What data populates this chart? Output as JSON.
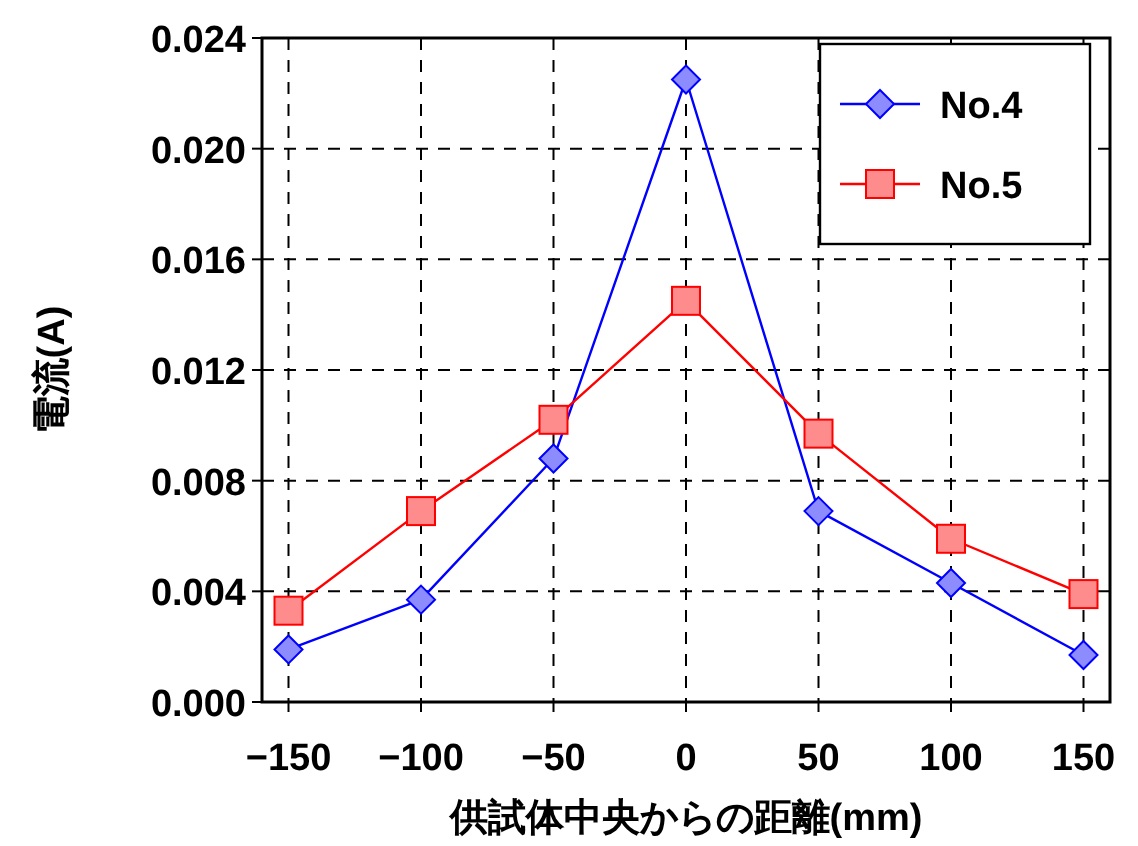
{
  "chart_data": {
    "type": "line",
    "xlabel": "供試体中央からの距離(mm)",
    "ylabel": "電流(A)",
    "x": [
      -150,
      -100,
      -50,
      0,
      50,
      100,
      150
    ],
    "series": [
      {
        "name": "No.4",
        "color": "#0000ff",
        "marker": "diamond",
        "values": [
          0.0019,
          0.0037,
          0.0088,
          0.0225,
          0.0069,
          0.0043,
          0.0017
        ]
      },
      {
        "name": "No.5",
        "color": "#ff0000",
        "marker": "square",
        "values": [
          0.0033,
          0.0069,
          0.0102,
          0.0145,
          0.0097,
          0.0059,
          0.0039
        ]
      }
    ],
    "xlim": [
      -160,
      160
    ],
    "xticks": [
      -150,
      -100,
      -50,
      0,
      50,
      100,
      150
    ],
    "ylim": [
      0,
      0.024
    ],
    "yticks": [
      {
        "value": 0,
        "label": "0.000"
      },
      {
        "value": 0.004,
        "label": "0.004"
      },
      {
        "value": 0.008,
        "label": "0.008"
      },
      {
        "value": 0.012,
        "label": "0.012"
      },
      {
        "value": 0.016,
        "label": "0.016"
      },
      {
        "value": 0.02,
        "label": "0.020"
      },
      {
        "value": 0.024,
        "label": "0.024"
      }
    ],
    "grid": true,
    "legend": "top right",
    "line_style": "solid"
  }
}
